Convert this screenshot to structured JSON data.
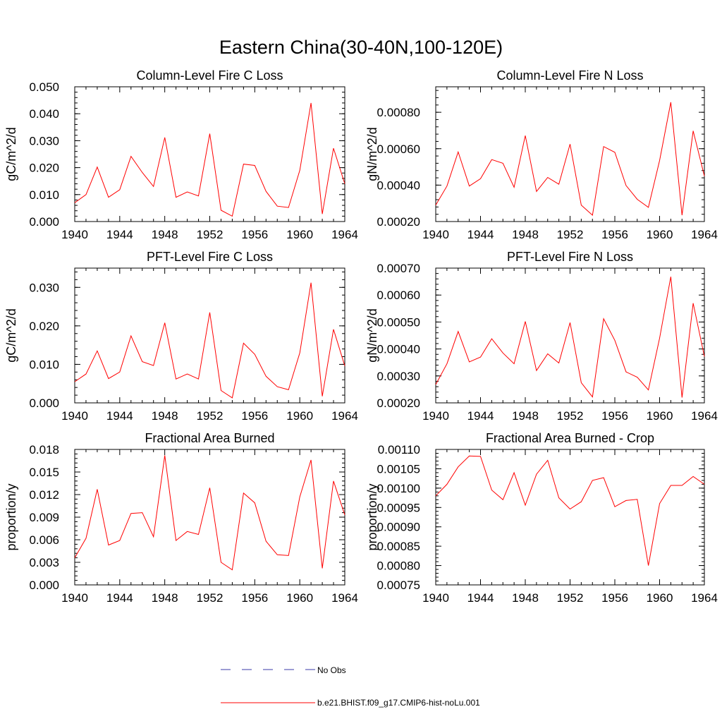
{
  "figure": {
    "title": "Eastern China(30-40N,100-120E)"
  },
  "legend": [
    {
      "label": "No Obs",
      "color": "#3a3aa8",
      "style": "dashed"
    },
    {
      "label": "b.e21.BHIST.f09_g17.CMIP6-hist-noLu.001",
      "color": "#ff0000",
      "style": "solid"
    }
  ],
  "chart_data": [
    {
      "type": "line",
      "title": "Column-Level Fire C Loss",
      "ylabel": "gC/m^2/d",
      "xlim": [
        1940,
        1964
      ],
      "ylim": [
        0,
        0.05
      ],
      "xticks": [
        1940,
        1944,
        1948,
        1952,
        1956,
        1960,
        1964
      ],
      "yticks": [
        "0.000",
        "0.010",
        "0.020",
        "0.030",
        "0.040",
        "0.050"
      ],
      "ytick_values": [
        0,
        0.01,
        0.02,
        0.03,
        0.04,
        0.05
      ],
      "x": [
        1940,
        1941,
        1942,
        1943,
        1944,
        1945,
        1946,
        1947,
        1948,
        1949,
        1950,
        1951,
        1952,
        1953,
        1954,
        1955,
        1956,
        1957,
        1958,
        1959,
        1960,
        1961,
        1962,
        1963,
        1964
      ],
      "series": [
        {
          "color": "#ff0000",
          "values": [
            0.007,
            0.01,
            0.0202,
            0.009,
            0.0118,
            0.0242,
            0.0182,
            0.013,
            0.0312,
            0.009,
            0.011,
            0.0095,
            0.0326,
            0.0042,
            0.002,
            0.0213,
            0.0208,
            0.0112,
            0.0057,
            0.0052,
            0.019,
            0.044,
            0.0028,
            0.0272,
            0.014
          ]
        }
      ]
    },
    {
      "type": "line",
      "title": "Column-Level Fire N Loss",
      "ylabel": "gN/m^2/d",
      "xlim": [
        1940,
        1964
      ],
      "ylim": [
        0.0002,
        0.00094
      ],
      "xticks": [
        1940,
        1944,
        1948,
        1952,
        1956,
        1960,
        1964
      ],
      "yticks": [
        "0.00020",
        "0.00040",
        "0.00060",
        "0.00080"
      ],
      "ytick_values": [
        0.0002,
        0.0004,
        0.0006,
        0.0008
      ],
      "x": [
        1940,
        1941,
        1942,
        1943,
        1944,
        1945,
        1946,
        1947,
        1948,
        1949,
        1950,
        1951,
        1952,
        1953,
        1954,
        1955,
        1956,
        1957,
        1958,
        1959,
        1960,
        1961,
        1962,
        1963,
        1964
      ],
      "series": [
        {
          "color": "#ff0000",
          "values": [
            0.00029,
            0.000395,
            0.000582,
            0.000395,
            0.000435,
            0.00054,
            0.00052,
            0.000388,
            0.000672,
            0.000365,
            0.000442,
            0.000405,
            0.000625,
            0.00029,
            0.000235,
            0.000612,
            0.00058,
            0.000398,
            0.000322,
            0.000278,
            0.000535,
            0.000855,
            0.000235,
            0.000698,
            0.00045
          ]
        }
      ]
    },
    {
      "type": "line",
      "title": "PFT-Level Fire C Loss",
      "ylabel": "gC/m^2/d",
      "xlim": [
        1940,
        1964
      ],
      "ylim": [
        0,
        0.035
      ],
      "xticks": [
        1940,
        1944,
        1948,
        1952,
        1956,
        1960,
        1964
      ],
      "yticks": [
        "0.000",
        "0.010",
        "0.020",
        "0.030"
      ],
      "ytick_values": [
        0,
        0.01,
        0.02,
        0.03
      ],
      "x": [
        1940,
        1941,
        1942,
        1943,
        1944,
        1945,
        1946,
        1947,
        1948,
        1949,
        1950,
        1951,
        1952,
        1953,
        1954,
        1955,
        1956,
        1957,
        1958,
        1959,
        1960,
        1961,
        1962,
        1963,
        1964
      ],
      "series": [
        {
          "color": "#ff0000",
          "values": [
            0.0055,
            0.0075,
            0.0135,
            0.0063,
            0.008,
            0.0174,
            0.0107,
            0.0097,
            0.0208,
            0.0062,
            0.0075,
            0.0062,
            0.0235,
            0.0032,
            0.0013,
            0.0155,
            0.0126,
            0.0069,
            0.0042,
            0.0034,
            0.013,
            0.0312,
            0.0017,
            0.0191,
            0.0096
          ]
        }
      ]
    },
    {
      "type": "line",
      "title": "PFT-Level Fire N Loss",
      "ylabel": "gN/m^2/d",
      "xlim": [
        1940,
        1964
      ],
      "ylim": [
        0.0002,
        0.0007
      ],
      "xticks": [
        1940,
        1944,
        1948,
        1952,
        1956,
        1960,
        1964
      ],
      "yticks": [
        "0.00020",
        "0.00030",
        "0.00040",
        "0.00050",
        "0.00060",
        "0.00070"
      ],
      "ytick_values": [
        0.0002,
        0.0003,
        0.0004,
        0.0005,
        0.0006,
        0.0007
      ],
      "x": [
        1940,
        1941,
        1942,
        1943,
        1944,
        1945,
        1946,
        1947,
        1948,
        1949,
        1950,
        1951,
        1952,
        1953,
        1954,
        1955,
        1956,
        1957,
        1958,
        1959,
        1960,
        1961,
        1962,
        1963,
        1964
      ],
      "series": [
        {
          "color": "#ff0000",
          "values": [
            0.000268,
            0.000345,
            0.000465,
            0.000352,
            0.00037,
            0.000438,
            0.000385,
            0.000345,
            0.000502,
            0.00032,
            0.000382,
            0.000348,
            0.000498,
            0.000275,
            0.000222,
            0.000512,
            0.000432,
            0.000315,
            0.000295,
            0.000248,
            0.00044,
            0.000668,
            0.00022,
            0.00057,
            0.000372
          ]
        }
      ]
    },
    {
      "type": "line",
      "title": "Fractional Area Burned",
      "ylabel": "proportion/y",
      "xlim": [
        1940,
        1964
      ],
      "ylim": [
        0,
        0.018
      ],
      "xticks": [
        1940,
        1944,
        1948,
        1952,
        1956,
        1960,
        1964
      ],
      "yticks": [
        "0.000",
        "0.003",
        "0.006",
        "0.009",
        "0.012",
        "0.015",
        "0.018"
      ],
      "ytick_values": [
        0,
        0.003,
        0.006,
        0.009,
        0.012,
        0.015,
        0.018
      ],
      "x": [
        1940,
        1941,
        1942,
        1943,
        1944,
        1945,
        1946,
        1947,
        1948,
        1949,
        1950,
        1951,
        1952,
        1953,
        1954,
        1955,
        1956,
        1957,
        1958,
        1959,
        1960,
        1961,
        1962,
        1963,
        1964
      ],
      "series": [
        {
          "color": "#ff0000",
          "values": [
            0.0036,
            0.0062,
            0.0127,
            0.0053,
            0.0059,
            0.0095,
            0.0096,
            0.0064,
            0.0172,
            0.0059,
            0.0071,
            0.0067,
            0.0129,
            0.003,
            0.002,
            0.0122,
            0.0109,
            0.0058,
            0.004,
            0.0039,
            0.0117,
            0.0166,
            0.0022,
            0.0138,
            0.0093
          ]
        }
      ]
    },
    {
      "type": "line",
      "title": "Fractional Area Burned - Crop",
      "ylabel": "proportion/y",
      "xlim": [
        1940,
        1964
      ],
      "ylim": [
        0.00075,
        0.0011
      ],
      "xticks": [
        1940,
        1944,
        1948,
        1952,
        1956,
        1960,
        1964
      ],
      "yticks": [
        "0.00075",
        "0.00080",
        "0.00085",
        "0.00090",
        "0.00095",
        "0.00100",
        "0.00105",
        "0.00110"
      ],
      "ytick_values": [
        0.00075,
        0.0008,
        0.00085,
        0.0009,
        0.00095,
        0.001,
        0.00105,
        0.0011
      ],
      "x": [
        1940,
        1941,
        1942,
        1943,
        1944,
        1945,
        1946,
        1947,
        1948,
        1949,
        1950,
        1951,
        1952,
        1953,
        1954,
        1955,
        1956,
        1957,
        1958,
        1959,
        1960,
        1961,
        1962,
        1963,
        1964
      ],
      "series": [
        {
          "color": "#ff0000",
          "values": [
            0.00098,
            0.00101,
            0.001055,
            0.001083,
            0.001082,
            0.000995,
            0.00097,
            0.00104,
            0.000956,
            0.001036,
            0.001072,
            0.000975,
            0.000946,
            0.000965,
            0.00102,
            0.001027,
            0.000952,
            0.000968,
            0.000971,
            0.0008,
            0.00096,
            0.001007,
            0.001007,
            0.00103,
            0.00101
          ]
        }
      ]
    }
  ]
}
